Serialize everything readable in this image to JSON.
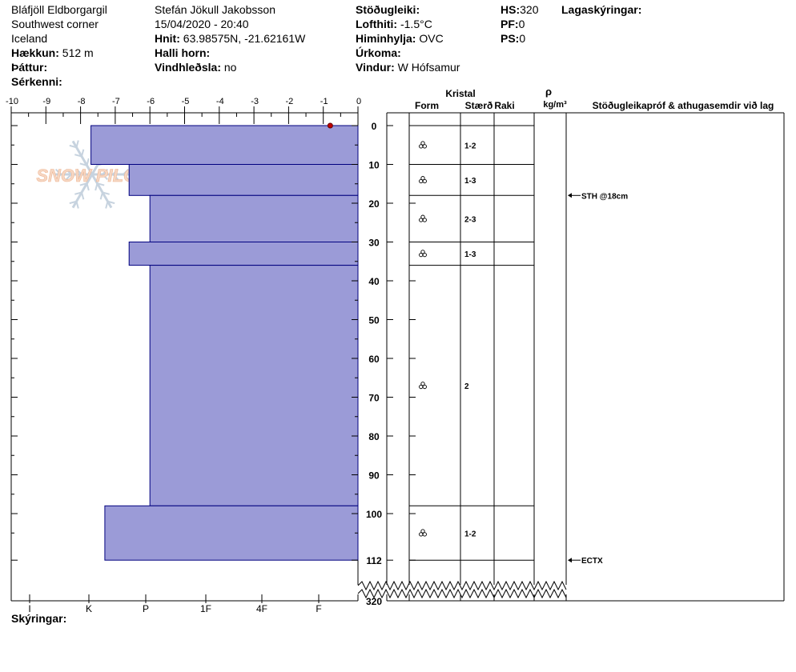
{
  "header": {
    "col1": [
      {
        "label": "",
        "value": "Bláfjöll Eldborgargil"
      },
      {
        "label": "",
        "value": "Southwest corner"
      },
      {
        "label": "",
        "value": "Iceland"
      },
      {
        "label": "Hækkun:",
        "value": "512 m"
      },
      {
        "label": "Þáttur:",
        "value": ""
      },
      {
        "label": "Sérkenni:",
        "value": ""
      }
    ],
    "col2": [
      {
        "label": "",
        "value": "Stefán Jökull Jakobsson"
      },
      {
        "label": "",
        "value": "15/04/2020 - 20:40"
      },
      {
        "label": "Hnit:",
        "value": "63.98575N, -21.62161W"
      },
      {
        "label": "Halli horn:",
        "value": ""
      },
      {
        "label": "Vindhleðsla:",
        "value": "no"
      }
    ],
    "col3": [
      {
        "label": "Stöðugleiki:",
        "value": ""
      },
      {
        "label": "Lofthiti:",
        "value": "-1.5°C"
      },
      {
        "label": "Himinhylja:",
        "value": "OVC"
      },
      {
        "label": "Úrkoma:",
        "value": ""
      },
      {
        "label": "Vindur:",
        "value": "W Hófsamur"
      }
    ],
    "col4": [
      {
        "label": "HS:",
        "value": "320"
      },
      {
        "label": "PF:",
        "value": "0"
      },
      {
        "label": "PS:",
        "value": "0"
      }
    ],
    "col5": [
      {
        "label": "Lagaskýringar:",
        "value": ""
      }
    ]
  },
  "watermark": "SNOW PILOT",
  "footer": {
    "label": "Skýringar:"
  },
  "columns": {
    "kristal": "Kristal",
    "form": "Form",
    "size": "Stærð",
    "moisture": "Raki",
    "rho": "ρ",
    "density_unit": "kg/m³",
    "comments": "Stöðugleikapróf & athugasemdir við lag"
  },
  "colors": {
    "bar_fill": "#9b9bd7",
    "bar_stroke": "#00007f",
    "temp_point": "#c00000"
  },
  "chart_data": {
    "type": "bar",
    "orientation": "horizontal",
    "temperature_axis": {
      "ticks": [
        -10,
        -9,
        -8,
        -7,
        -6,
        -5,
        -4,
        -3,
        -2,
        -1,
        0
      ],
      "range": [
        -10,
        0
      ]
    },
    "depth_axis": {
      "labels": [
        "0",
        "10",
        "20",
        "30",
        "40",
        "50",
        "60",
        "70",
        "80",
        "90",
        "100",
        "112",
        "320"
      ],
      "visible_range": [
        0,
        112
      ],
      "total": 320,
      "broken_axis": true
    },
    "hardness_axis": {
      "labels": [
        "I",
        "K",
        "P",
        "1F",
        "4F",
        "F"
      ]
    },
    "hardness_scale_note": "",
    "layers": [
      {
        "top": 0,
        "bottom": 10,
        "hardness": "4F"
      },
      {
        "top": 10,
        "bottom": 18,
        "hardness": "1F+"
      },
      {
        "top": 18,
        "bottom": 30,
        "hardness": "1F"
      },
      {
        "top": 30,
        "bottom": 36,
        "hardness": "1F+"
      },
      {
        "top": 36,
        "bottom": 98,
        "hardness": "1F"
      },
      {
        "top": 98,
        "bottom": 112,
        "hardness": "P+"
      }
    ],
    "layer_hardness_values": [
      7.7,
      6.6,
      6.0,
      6.6,
      6.0,
      7.3
    ],
    "crystals": [
      {
        "depth": 5,
        "form": "melt-grain-icon",
        "size": "1-2"
      },
      {
        "depth": 14,
        "form": "melt-grain-icon",
        "size": "1-3"
      },
      {
        "depth": 24,
        "form": "melt-grain-icon",
        "size": "2-3"
      },
      {
        "depth": 33,
        "form": "melt-grain-icon",
        "size": "1-3"
      },
      {
        "depth": 67,
        "form": "melt-grain-icon",
        "size": "2"
      },
      {
        "depth": 105,
        "form": "melt-grain-icon",
        "size": "1-2"
      }
    ],
    "temperature_points": [
      {
        "depth": 0,
        "temp": -0.8
      }
    ],
    "stability_tests": [
      {
        "depth": 18,
        "label": "STH @18cm"
      },
      {
        "depth": 112,
        "label": "ECTX"
      }
    ]
  }
}
